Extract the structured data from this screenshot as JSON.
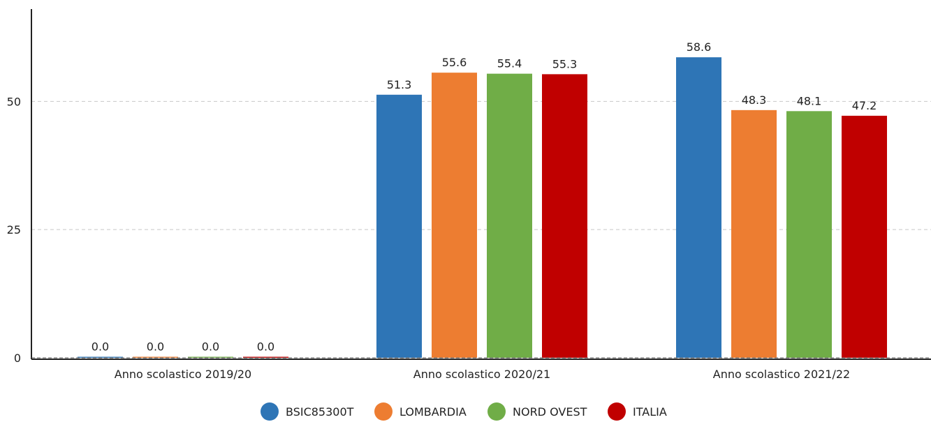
{
  "chart_data": {
    "type": "bar",
    "categories": [
      "Anno scolastico 2019/20",
      "Anno scolastico 2020/21",
      "Anno scolastico 2021/22"
    ],
    "series": [
      {
        "name": "BSIC85300T",
        "color": "#2e75b6",
        "values": [
          0.0,
          51.3,
          58.6
        ]
      },
      {
        "name": "LOMBARDIA",
        "color": "#ed7d31",
        "values": [
          0.0,
          55.6,
          48.3
        ]
      },
      {
        "name": "NORD OVEST",
        "color": "#70ad47",
        "values": [
          0.0,
          55.4,
          48.1
        ]
      },
      {
        "name": "ITALIA",
        "color": "#c00000",
        "values": [
          0.0,
          55.3,
          47.2
        ]
      }
    ],
    "data_labels": [
      [
        "0.0",
        "51.3",
        "58.6"
      ],
      [
        "0.0",
        "55.6",
        "48.3"
      ],
      [
        "0.0",
        "55.4",
        "48.1"
      ],
      [
        "0.0",
        "55.3",
        "47.2"
      ]
    ],
    "y_ticks": [
      0,
      25,
      50
    ],
    "y_tick_labels": [
      "0",
      "25",
      "50"
    ],
    "ylim": [
      0,
      68
    ],
    "grid": true,
    "legend_position": "bottom-center",
    "title": "",
    "xlabel": "",
    "ylabel": ""
  }
}
